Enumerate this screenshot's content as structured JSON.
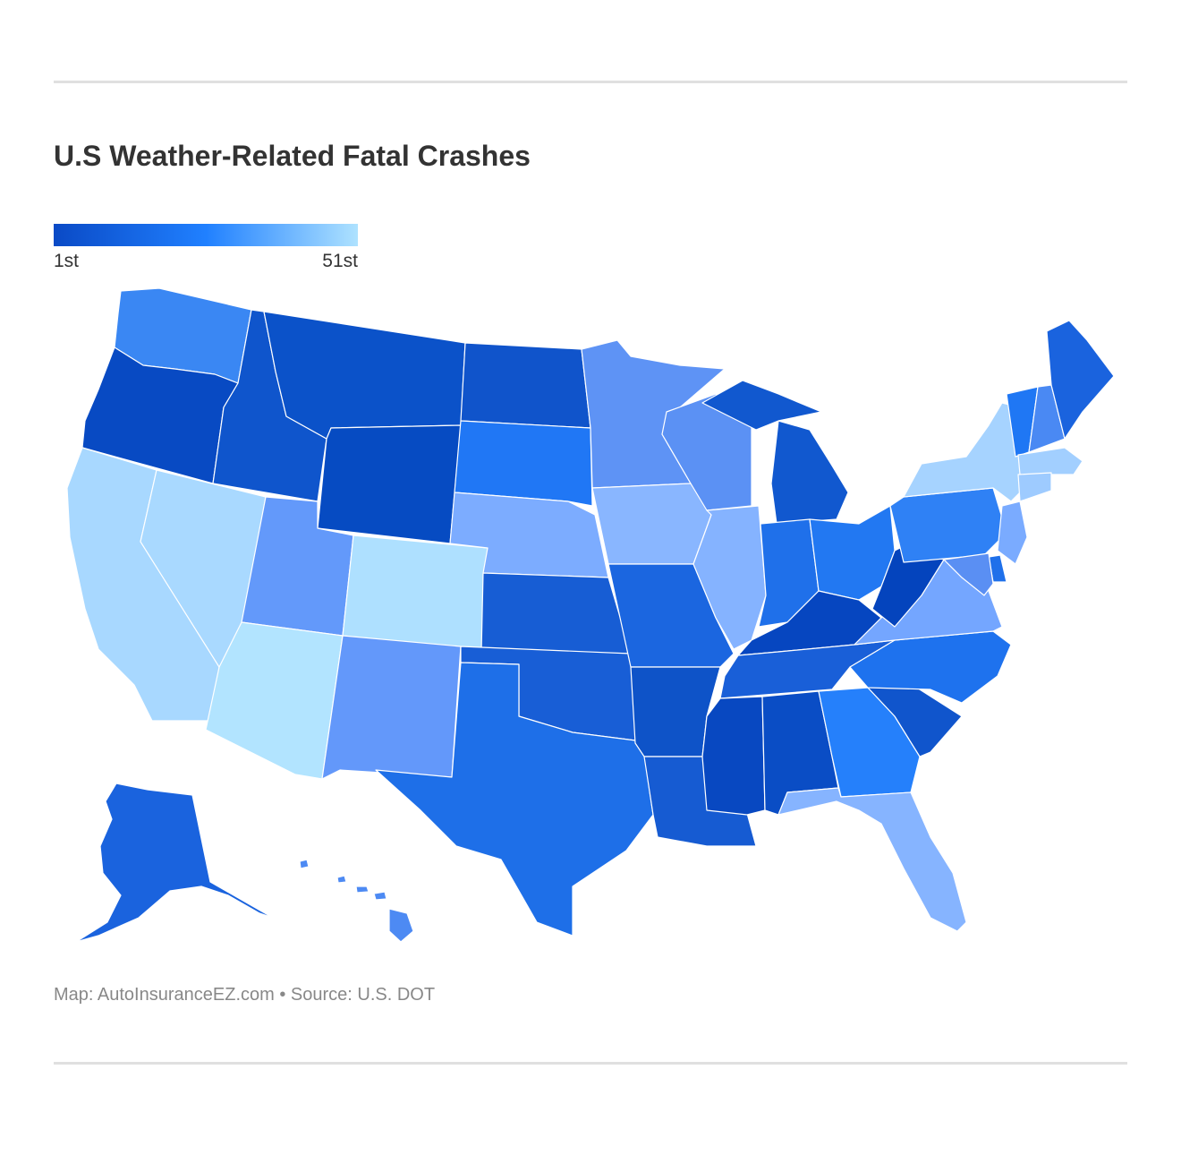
{
  "title": "U.S Weather-Related Fatal Crashes",
  "legend": {
    "min_label": "1st",
    "max_label": "51st",
    "colors": [
      "#0a4ac6",
      "#2080ff",
      "#aee2ff"
    ]
  },
  "footer": {
    "credit": "Map: AutoInsuranceEZ.com • Source: U.S. DOT"
  },
  "map": {
    "type": "choropleth",
    "metric": "rank",
    "regions": [
      {
        "code": "WA",
        "rank": 30,
        "color": "#3a87f3"
      },
      {
        "code": "OR",
        "rank": 3,
        "color": "#084ac3"
      },
      {
        "code": "CA",
        "rank": 48,
        "color": "#a8d8ff"
      },
      {
        "code": "NV",
        "rank": 47,
        "color": "#a9d9ff"
      },
      {
        "code": "ID",
        "rank": 8,
        "color": "#0f55cc"
      },
      {
        "code": "MT",
        "rank": 7,
        "color": "#0b52c9"
      },
      {
        "code": "WY",
        "rank": 2,
        "color": "#064bc2"
      },
      {
        "code": "UT",
        "rank": 38,
        "color": "#6399fa"
      },
      {
        "code": "AZ",
        "rank": 51,
        "color": "#b2e4ff"
      },
      {
        "code": "CO",
        "rank": 50,
        "color": "#aee0ff"
      },
      {
        "code": "NM",
        "rank": 37,
        "color": "#6398fa"
      },
      {
        "code": "ND",
        "rank": 11,
        "color": "#1054cb"
      },
      {
        "code": "SD",
        "rank": 24,
        "color": "#2077f5"
      },
      {
        "code": "NE",
        "rank": 41,
        "color": "#7cacff"
      },
      {
        "code": "KS",
        "rank": 14,
        "color": "#175dd4"
      },
      {
        "code": "OK",
        "rank": 15,
        "color": "#185ed6"
      },
      {
        "code": "TX",
        "rank": 20,
        "color": "#1e6fe8"
      },
      {
        "code": "MN",
        "rank": 36,
        "color": "#5e93f5"
      },
      {
        "code": "IA",
        "rank": 43,
        "color": "#89b6ff"
      },
      {
        "code": "MO",
        "rank": 18,
        "color": "#1b66e0"
      },
      {
        "code": "AR",
        "rank": 10,
        "color": "#0e53c8"
      },
      {
        "code": "LA",
        "rank": 13,
        "color": "#165bd2"
      },
      {
        "code": "WI",
        "rank": 35,
        "color": "#5b91f4"
      },
      {
        "code": "IL",
        "rank": 42,
        "color": "#85b3ff"
      },
      {
        "code": "MI",
        "rank": 9,
        "color": "#1158cf"
      },
      {
        "code": "IN",
        "rank": 22,
        "color": "#1f70ea"
      },
      {
        "code": "OH",
        "rank": 25,
        "color": "#2278f2"
      },
      {
        "code": "KY",
        "rank": 4,
        "color": "#0646c0"
      },
      {
        "code": "TN",
        "rank": 16,
        "color": "#195fd8"
      },
      {
        "code": "MS",
        "rank": 5,
        "color": "#0848c1"
      },
      {
        "code": "AL",
        "rank": 6,
        "color": "#0a4dc5"
      },
      {
        "code": "GA",
        "rank": 27,
        "color": "#2580fb"
      },
      {
        "code": "FL",
        "rank": 44,
        "color": "#86b4ff"
      },
      {
        "code": "SC",
        "rank": 12,
        "color": "#1055cc"
      },
      {
        "code": "NC",
        "rank": 23,
        "color": "#1e72ee"
      },
      {
        "code": "VA",
        "rank": 40,
        "color": "#74a6ff"
      },
      {
        "code": "WV",
        "rank": 1,
        "color": "#0444bd"
      },
      {
        "code": "PA",
        "rank": 28,
        "color": "#2f81f5"
      },
      {
        "code": "NY",
        "rank": 49,
        "color": "#a6d3ff"
      },
      {
        "code": "VT",
        "rank": 26,
        "color": "#1f77f4"
      },
      {
        "code": "NH",
        "rank": 33,
        "color": "#4a89f3"
      },
      {
        "code": "ME",
        "rank": 17,
        "color": "#1a63de"
      },
      {
        "code": "MA",
        "rank": 46,
        "color": "#a2cfff"
      },
      {
        "code": "CT",
        "rank": 45,
        "color": "#9ecbff"
      },
      {
        "code": "NJ",
        "rank": 39,
        "color": "#7aabff"
      },
      {
        "code": "DE",
        "rank": 21,
        "color": "#1f70ea"
      },
      {
        "code": "MD",
        "rank": 34,
        "color": "#5a8ff3"
      },
      {
        "code": "AK",
        "rank": 19,
        "color": "#1a63de"
      },
      {
        "code": "HI",
        "rank": 32,
        "color": "#4d8af3"
      }
    ]
  }
}
